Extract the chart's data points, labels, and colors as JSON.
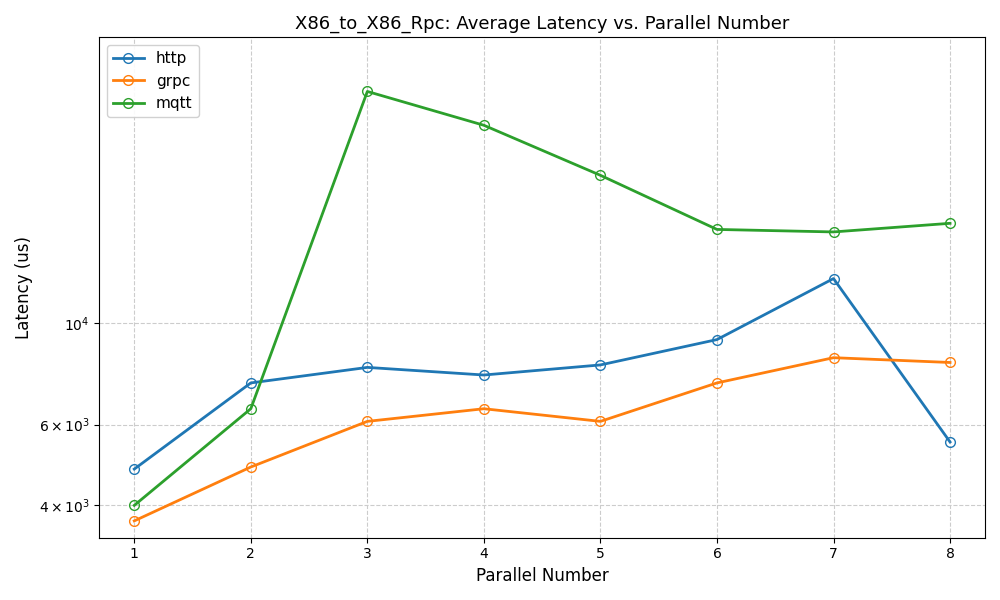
{
  "title": "X86_to_X86_Rpc: Average Latency vs. Parallel Number",
  "xlabel": "Parallel Number",
  "ylabel": "Latency (us)",
  "x": [
    1,
    2,
    3,
    4,
    5,
    6,
    7,
    8
  ],
  "http": [
    4800,
    7400,
    8000,
    7700,
    8100,
    9200,
    12500,
    5500
  ],
  "grpc": [
    3700,
    4850,
    6100,
    6500,
    6100,
    7400,
    8400,
    8200
  ],
  "mqtt": [
    4000,
    6500,
    32000,
    27000,
    21000,
    16000,
    15800,
    16500
  ],
  "http_color": "#1f77b4",
  "grpc_color": "#ff7f0e",
  "mqtt_color": "#2ca02c",
  "ylim_min": 3400,
  "ylim_max": 42000,
  "yticks": [
    4000,
    6000,
    10000
  ],
  "grid_color": "#cccccc",
  "background_color": "#ffffff",
  "figsize": [
    10,
    6
  ]
}
